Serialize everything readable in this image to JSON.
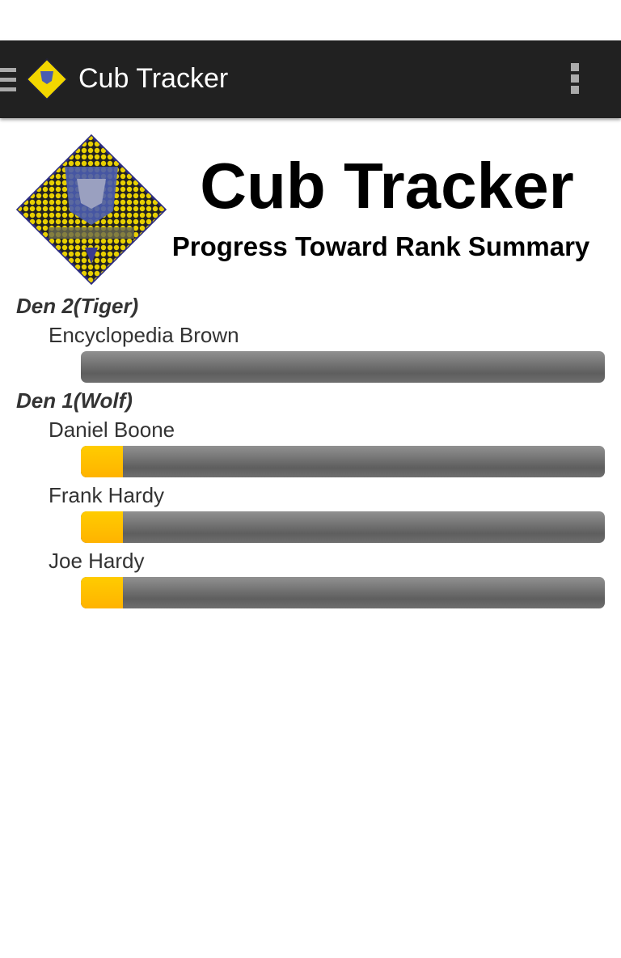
{
  "action_bar": {
    "title": "Cub Tracker",
    "menu_icon": "hamburger-icon",
    "logo_icon": "cub-scout-diamond-logo",
    "overflow_icon": "overflow-menu-icon"
  },
  "header": {
    "title": "Cub Tracker",
    "subtitle": "Progress Toward Rank Summary"
  },
  "dens": [
    {
      "name": "Den 2(Tiger)",
      "scouts": [
        {
          "name": "Encyclopedia Brown",
          "progress_percent": 0
        }
      ]
    },
    {
      "name": "Den 1(Wolf)",
      "scouts": [
        {
          "name": "Daniel Boone",
          "progress_percent": 8
        },
        {
          "name": "Frank Hardy",
          "progress_percent": 8
        },
        {
          "name": "Joe Hardy",
          "progress_percent": 8
        }
      ]
    }
  ],
  "colors": {
    "action_bar": "#212121",
    "progress_fill": "#ffbb00",
    "progress_track": "#777777"
  }
}
